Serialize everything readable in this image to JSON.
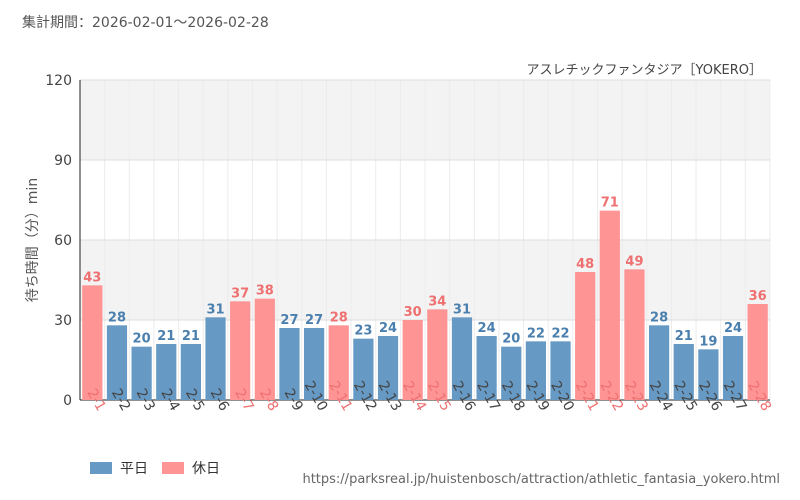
{
  "period_label": "集計期間：",
  "period_range": "2026-02-01～2026-02-28",
  "source_url": "https://parksreal.jp/huistenbosch/attraction/athletic_fantasia_yokero.html",
  "colors": {
    "weekday": "#6699c4",
    "holiday": "#ff9494",
    "weekday_text": "#4a7fae",
    "holiday_text": "#ee7070"
  },
  "legend": {
    "weekday": "平日",
    "holiday": "休日"
  },
  "chart_data": {
    "type": "bar",
    "title": "アスレチックファンタジア［YOKERO］",
    "xlabel": "",
    "ylabel": "待ち時間（分）min",
    "ylim": [
      0,
      120
    ],
    "yticks": [
      0,
      30,
      60,
      90,
      120
    ],
    "categories": [
      "2-1",
      "2-2",
      "2-3",
      "2-4",
      "2-5",
      "2-6",
      "2-7",
      "2-8",
      "2-9",
      "2-10",
      "2-11",
      "2-12",
      "2-13",
      "2-14",
      "2-15",
      "2-16",
      "2-17",
      "2-18",
      "2-19",
      "2-20",
      "2-21",
      "2-22",
      "2-23",
      "2-24",
      "2-25",
      "2-26",
      "2-27",
      "2-28"
    ],
    "values": [
      43,
      28,
      20,
      21,
      21,
      31,
      37,
      38,
      27,
      27,
      28,
      23,
      24,
      30,
      34,
      31,
      24,
      20,
      22,
      22,
      48,
      71,
      49,
      28,
      21,
      19,
      24,
      36
    ],
    "day_type": [
      "holiday",
      "weekday",
      "weekday",
      "weekday",
      "weekday",
      "weekday",
      "holiday",
      "holiday",
      "weekday",
      "weekday",
      "holiday",
      "weekday",
      "weekday",
      "holiday",
      "holiday",
      "weekday",
      "weekday",
      "weekday",
      "weekday",
      "weekday",
      "holiday",
      "holiday",
      "holiday",
      "weekday",
      "weekday",
      "weekday",
      "weekday",
      "holiday"
    ]
  }
}
